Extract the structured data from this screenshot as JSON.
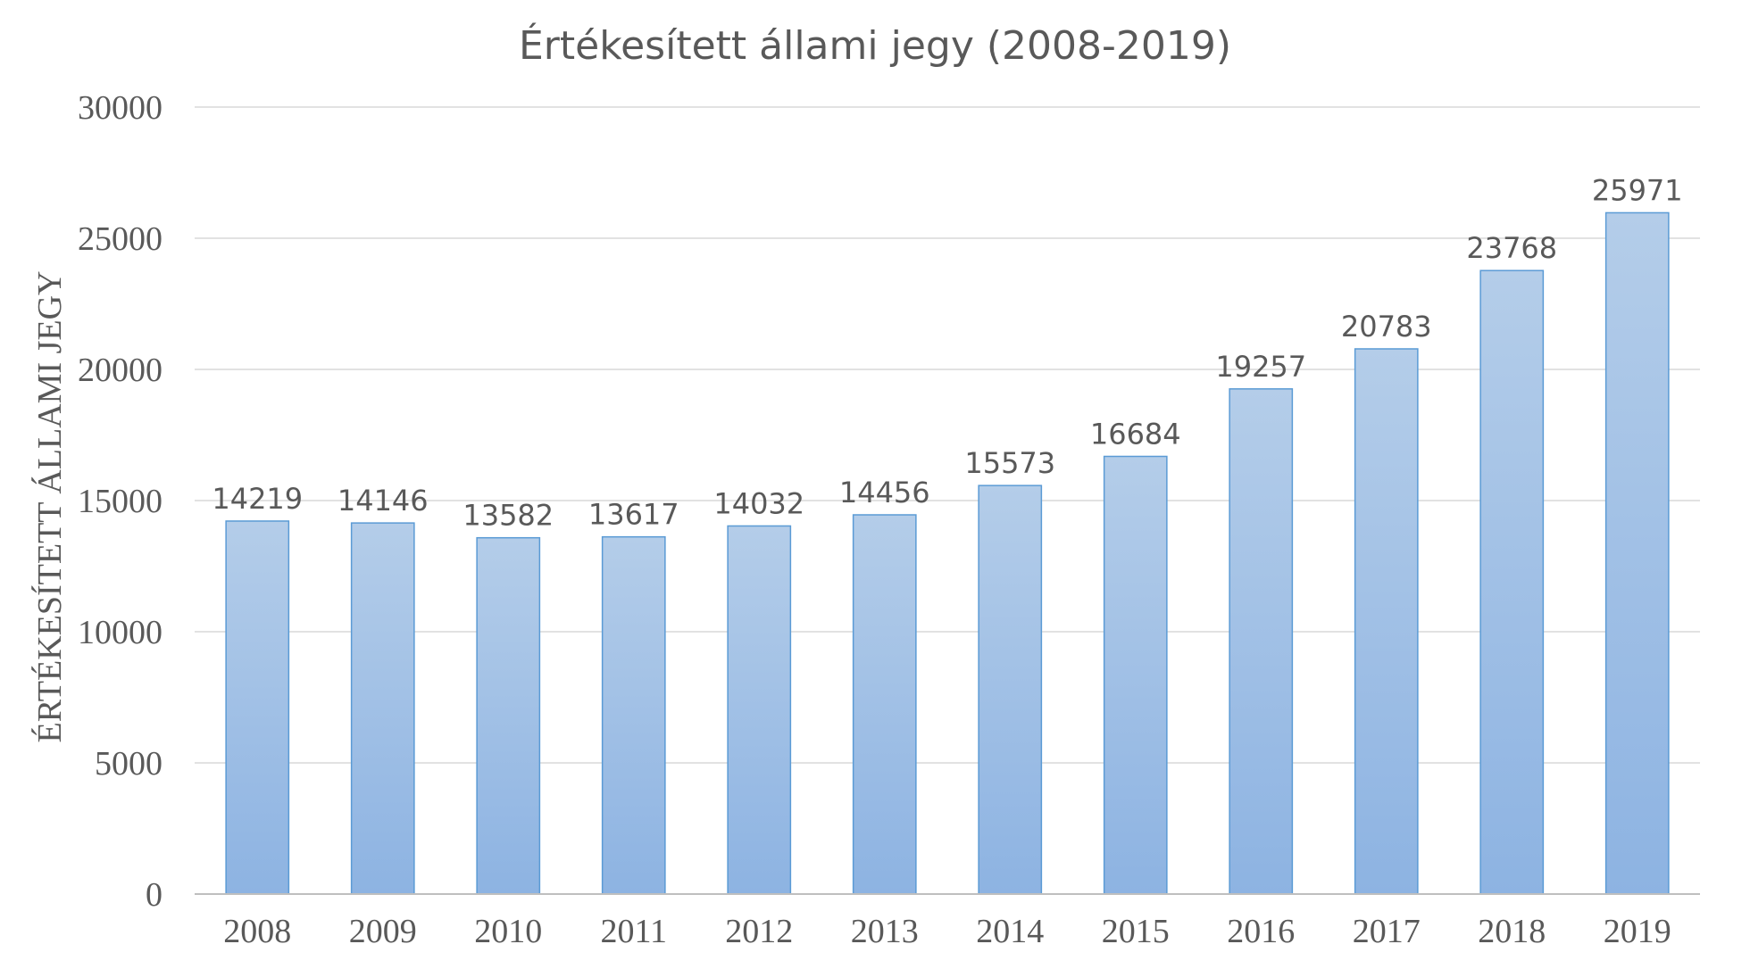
{
  "chart_data": {
    "type": "bar",
    "title": "Értékesített állami jegy (2008-2019)",
    "ylabel": "ÉRTÉKESÍTETT ÁLLAMI JEGY",
    "xlabel": "",
    "categories": [
      "2008",
      "2009",
      "2010",
      "2011",
      "2012",
      "2013",
      "2014",
      "2015",
      "2016",
      "2017",
      "2018",
      "2019"
    ],
    "values": [
      14219,
      14146,
      13582,
      13617,
      14032,
      14456,
      15573,
      16684,
      19257,
      20783,
      23768,
      25971
    ],
    "ylim": [
      0,
      30000
    ],
    "yticks": [
      "0",
      "5000",
      "10000",
      "15000",
      "20000",
      "25000",
      "30000"
    ],
    "grid": true,
    "legend": "none",
    "colors": {
      "bar_top": "#b4cde9",
      "bar_bottom": "#8db3e2",
      "bar_edge": "#5b9bd5",
      "text": "#595959",
      "grid": "#d9d9d9"
    }
  }
}
